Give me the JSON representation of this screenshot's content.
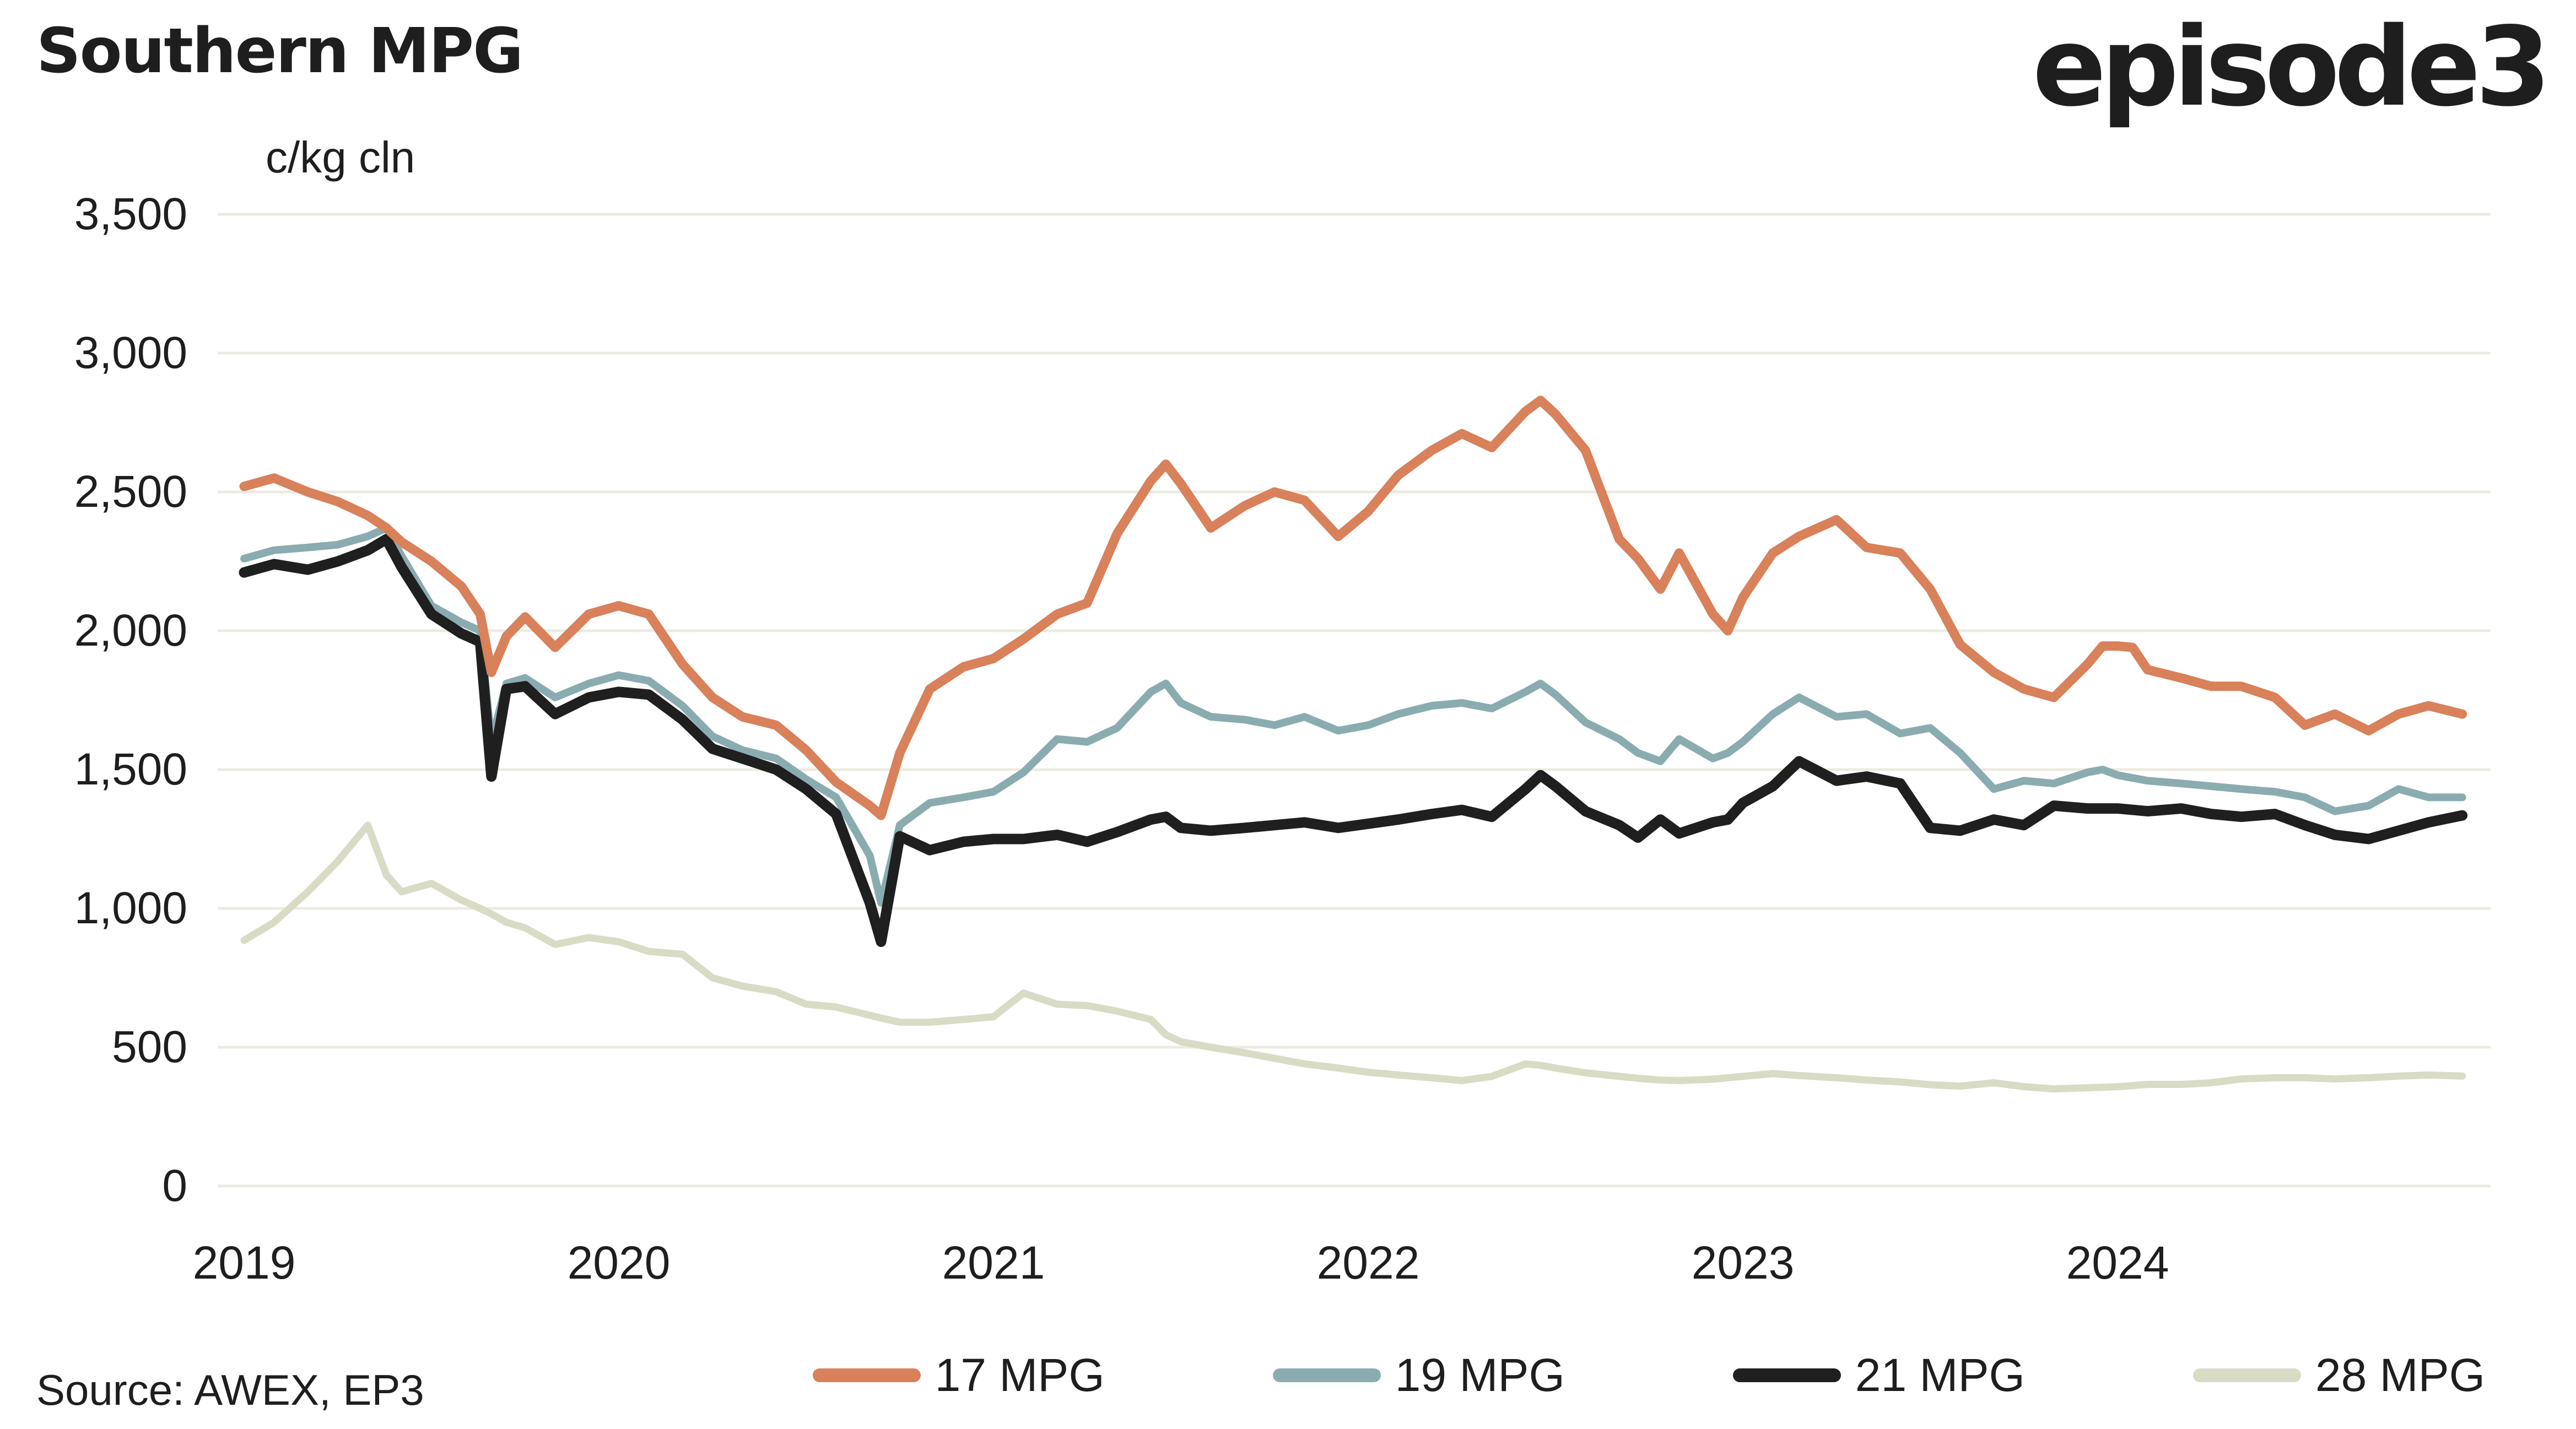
{
  "header": {
    "title": "Southern MPG",
    "logo": "episode3"
  },
  "footer": {
    "source": "Source: AWEX, EP3"
  },
  "colors": {
    "text": "#1e1e1e",
    "background": "#ffffff",
    "gridline": "#edebe1",
    "series_17mpg": "#d8815a",
    "series_19mpg": "#8aacb0",
    "series_21mpg": "#1f1f1f",
    "series_28mpg": "#d9dbc5"
  },
  "chart_data": {
    "type": "line",
    "title": "Southern MPG",
    "ylabel": "c/kg cln",
    "xlabel": "",
    "grid": "horizontal",
    "legend_position": "bottom",
    "xlim": [
      2018.95,
      2025.05
    ],
    "ylim": [
      0,
      3500
    ],
    "yticks": [
      0,
      500,
      1000,
      1500,
      2000,
      2500,
      3000,
      3500
    ],
    "ytick_labels": [
      "0",
      "500",
      "1,000",
      "1,500",
      "2,000",
      "2,500",
      "3,000",
      "3,500"
    ],
    "xticks": [
      2019,
      2020,
      2021,
      2022,
      2023,
      2024
    ],
    "xtick_labels": [
      "2019",
      "2020",
      "2021",
      "2022",
      "2023",
      "2024"
    ],
    "x": [
      2019.0,
      2019.08,
      2019.17,
      2019.25,
      2019.33,
      2019.38,
      2019.42,
      2019.5,
      2019.58,
      2019.63,
      2019.66,
      2019.7,
      2019.75,
      2019.83,
      2019.92,
      2020.0,
      2020.08,
      2020.17,
      2020.25,
      2020.33,
      2020.42,
      2020.5,
      2020.58,
      2020.67,
      2020.7,
      2020.75,
      2020.83,
      2020.92,
      2021.0,
      2021.08,
      2021.17,
      2021.25,
      2021.33,
      2021.42,
      2021.46,
      2021.5,
      2021.58,
      2021.67,
      2021.75,
      2021.83,
      2021.92,
      2022.0,
      2022.08,
      2022.17,
      2022.25,
      2022.33,
      2022.42,
      2022.46,
      2022.5,
      2022.58,
      2022.67,
      2022.72,
      2022.78,
      2022.83,
      2022.92,
      2022.96,
      2023.0,
      2023.08,
      2023.15,
      2023.25,
      2023.33,
      2023.42,
      2023.5,
      2023.58,
      2023.67,
      2023.75,
      2023.83,
      2023.92,
      2023.96,
      2024.0,
      2024.04,
      2024.08,
      2024.17,
      2024.25,
      2024.33,
      2024.42,
      2024.5,
      2024.58,
      2024.67,
      2024.75,
      2024.83,
      2024.92
    ],
    "series": [
      {
        "name": "17 MPG",
        "color": "#d8815a",
        "values": [
          2520,
          2550,
          2500,
          2465,
          2415,
          2370,
          2320,
          2250,
          2160,
          2060,
          1850,
          1980,
          2050,
          1940,
          2060,
          2090,
          2060,
          1880,
          1760,
          1690,
          1660,
          1570,
          1455,
          1370,
          1335,
          1560,
          1790,
          1870,
          1900,
          1970,
          2060,
          2100,
          2350,
          2540,
          2600,
          2530,
          2370,
          2450,
          2500,
          2470,
          2340,
          2430,
          2560,
          2650,
          2710,
          2660,
          2790,
          2830,
          2780,
          2650,
          2330,
          2260,
          2150,
          2280,
          2060,
          2000,
          2120,
          2280,
          2340,
          2400,
          2300,
          2280,
          2150,
          1950,
          1850,
          1790,
          1760,
          1880,
          1945,
          1945,
          1940,
          1860,
          1830,
          1800,
          1800,
          1760,
          1660,
          1700,
          1640,
          1700,
          1730,
          1700
        ]
      },
      {
        "name": "19 MPG",
        "color": "#8aacb0",
        "values": [
          2260,
          2290,
          2300,
          2310,
          2340,
          2370,
          2270,
          2090,
          2030,
          2000,
          1600,
          1810,
          1830,
          1760,
          1810,
          1840,
          1820,
          1730,
          1620,
          1570,
          1540,
          1465,
          1400,
          1190,
          1020,
          1300,
          1380,
          1400,
          1420,
          1490,
          1610,
          1600,
          1650,
          1780,
          1810,
          1740,
          1690,
          1680,
          1660,
          1690,
          1640,
          1660,
          1700,
          1730,
          1740,
          1720,
          1780,
          1810,
          1770,
          1670,
          1610,
          1560,
          1530,
          1610,
          1540,
          1560,
          1600,
          1700,
          1760,
          1690,
          1700,
          1630,
          1650,
          1560,
          1430,
          1460,
          1450,
          1490,
          1500,
          1480,
          1470,
          1460,
          1450,
          1440,
          1430,
          1420,
          1400,
          1350,
          1370,
          1430,
          1400,
          1400
        ]
      },
      {
        "name": "21 MPG",
        "color": "#1f1f1f",
        "values": [
          2210,
          2240,
          2220,
          2250,
          2290,
          2330,
          2230,
          2060,
          1990,
          1960,
          1475,
          1790,
          1800,
          1700,
          1760,
          1780,
          1770,
          1680,
          1575,
          1540,
          1500,
          1430,
          1340,
          1020,
          880,
          1260,
          1210,
          1240,
          1250,
          1250,
          1265,
          1240,
          1275,
          1320,
          1330,
          1290,
          1280,
          1290,
          1300,
          1310,
          1290,
          1305,
          1320,
          1340,
          1355,
          1330,
          1430,
          1480,
          1440,
          1350,
          1300,
          1255,
          1320,
          1270,
          1310,
          1320,
          1380,
          1440,
          1530,
          1460,
          1475,
          1450,
          1290,
          1280,
          1320,
          1300,
          1370,
          1360,
          1360,
          1360,
          1355,
          1350,
          1360,
          1340,
          1330,
          1340,
          1300,
          1265,
          1250,
          1280,
          1310,
          1335
        ]
      },
      {
        "name": "28 MPG",
        "color": "#d9dbc5",
        "values": [
          885,
          950,
          1060,
          1170,
          1300,
          1120,
          1060,
          1090,
          1030,
          1000,
          980,
          950,
          930,
          870,
          895,
          880,
          845,
          835,
          750,
          720,
          700,
          655,
          645,
          615,
          605,
          590,
          590,
          600,
          610,
          695,
          655,
          650,
          630,
          600,
          545,
          520,
          500,
          480,
          460,
          440,
          425,
          410,
          400,
          390,
          380,
          395,
          440,
          435,
          425,
          408,
          395,
          388,
          382,
          380,
          385,
          390,
          395,
          405,
          398,
          390,
          382,
          375,
          365,
          360,
          372,
          358,
          350,
          354,
          356,
          358,
          362,
          366,
          366,
          372,
          386,
          390,
          390,
          386,
          390,
          396,
          400,
          396
        ]
      }
    ],
    "draw_order": [
      "28 MPG",
      "19 MPG",
      "21 MPG",
      "17 MPG"
    ]
  }
}
